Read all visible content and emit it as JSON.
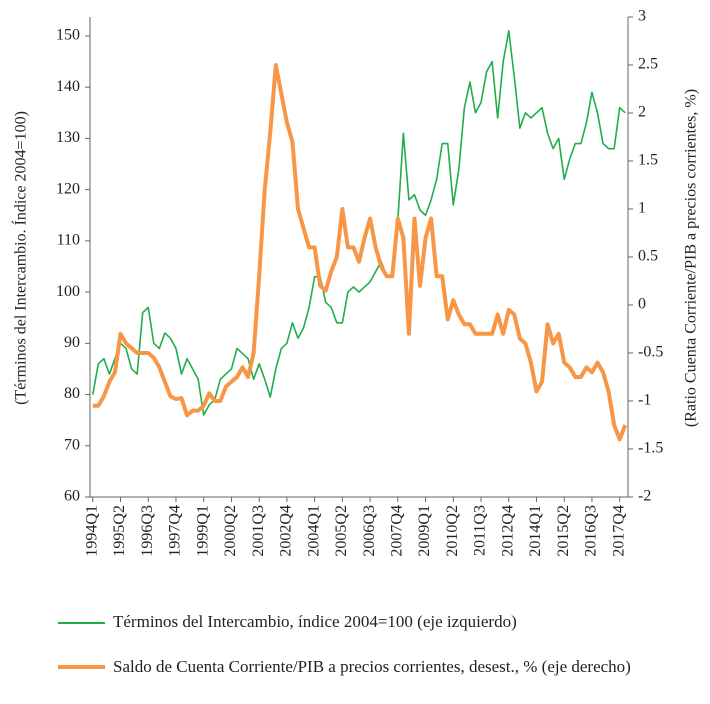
{
  "chart_data": {
    "type": "line",
    "y_label": "(Términos del Intercambio. Índice 2004=100)",
    "y2_label": "(Ratio Cuenta Corriente/PIB a precios corrientes, %)",
    "categories": [
      "1994Q1",
      null,
      null,
      null,
      null,
      "1995Q2",
      null,
      null,
      null,
      null,
      "1996Q3",
      null,
      null,
      null,
      null,
      "1997Q4",
      null,
      null,
      null,
      null,
      "1999Q1",
      null,
      null,
      null,
      null,
      "2000Q2",
      null,
      null,
      null,
      null,
      "2001Q3",
      null,
      null,
      null,
      null,
      "2002Q4",
      null,
      null,
      null,
      null,
      "2004Q1",
      null,
      null,
      null,
      null,
      "2005Q2",
      null,
      null,
      null,
      null,
      "2006Q3",
      null,
      null,
      null,
      null,
      "2007Q4",
      null,
      null,
      null,
      null,
      "2009Q1",
      null,
      null,
      null,
      null,
      "2010Q2",
      null,
      null,
      null,
      null,
      "2011Q3",
      null,
      null,
      null,
      null,
      "2012Q4",
      null,
      null,
      null,
      null,
      "2014Q1",
      null,
      null,
      null,
      null,
      "2015Q2",
      null,
      null,
      null,
      null,
      "2016Q3",
      null,
      null,
      null,
      null,
      "2017Q4",
      null
    ],
    "series": [
      {
        "name": "Términos del Intercambio, índice 2004=100 (eje izquierdo)",
        "color": "#1fae4b",
        "width": 1.6,
        "values": [
          80,
          86,
          87,
          84,
          87,
          90,
          89,
          85,
          84,
          96,
          97,
          90,
          89,
          92,
          91,
          89,
          84,
          87,
          85,
          83,
          76,
          78,
          79,
          83,
          84,
          85,
          89,
          88,
          87,
          83,
          86,
          83,
          79.5,
          85,
          89,
          90,
          94,
          91,
          93,
          97,
          103,
          103,
          98,
          97,
          94,
          94,
          100,
          101,
          100,
          101,
          102,
          104,
          106,
          103,
          103,
          114,
          131,
          118,
          119,
          116,
          115,
          118,
          122,
          129,
          129,
          117,
          124,
          136,
          141,
          135,
          137,
          143,
          145,
          134,
          145,
          151,
          142,
          132,
          135,
          134,
          135,
          136,
          131,
          128,
          130,
          122,
          126,
          129,
          129,
          133,
          139,
          135,
          129,
          128,
          128,
          136,
          135
        ]
      },
      {
        "name": "Saldo de Cuenta Corriente/PIB a precios corrientes, desest., % (eje derecho)",
        "color": "#f79646",
        "width": 4,
        "axis": "y2",
        "values": [
          -1.05,
          -1.05,
          -0.95,
          -0.8,
          -0.7,
          -0.3,
          -0.4,
          -0.45,
          -0.5,
          -0.5,
          -0.5,
          -0.55,
          -0.65,
          -0.8,
          -0.95,
          -0.98,
          -0.97,
          -1.15,
          -1.1,
          -1.1,
          -1.05,
          -0.92,
          -1.0,
          -1.0,
          -0.85,
          -0.8,
          -0.75,
          -0.65,
          -0.75,
          -0.5,
          0.3,
          1.2,
          1.8,
          2.5,
          2.2,
          1.9,
          1.7,
          1.0,
          0.8,
          0.6,
          0.6,
          0.2,
          0.15,
          0.35,
          0.5,
          1.0,
          0.6,
          0.6,
          0.45,
          0.7,
          0.9,
          0.6,
          0.4,
          0.3,
          0.3,
          0.9,
          0.7,
          -0.3,
          0.9,
          0.2,
          0.7,
          0.9,
          0.3,
          0.3,
          -0.15,
          0.05,
          -0.1,
          -0.2,
          -0.2,
          -0.3,
          -0.3,
          -0.3,
          -0.3,
          -0.1,
          -0.3,
          -0.05,
          -0.1,
          -0.35,
          -0.4,
          -0.6,
          -0.9,
          -0.8,
          -0.2,
          -0.4,
          -0.3,
          -0.6,
          -0.65,
          -0.75,
          -0.75,
          -0.65,
          -0.7,
          -0.6,
          -0.7,
          -0.9,
          -1.25,
          -1.4,
          -1.25
        ]
      }
    ],
    "ylim": [
      60,
      153.7
    ],
    "yticks": [
      60,
      70,
      80,
      90,
      100,
      110,
      120,
      130,
      140,
      150
    ],
    "y2lim": [
      -2,
      3
    ],
    "y2ticks": [
      -2,
      -1.5,
      -1,
      -0.5,
      0,
      0.5,
      1,
      1.5,
      2,
      2.5,
      3
    ]
  }
}
